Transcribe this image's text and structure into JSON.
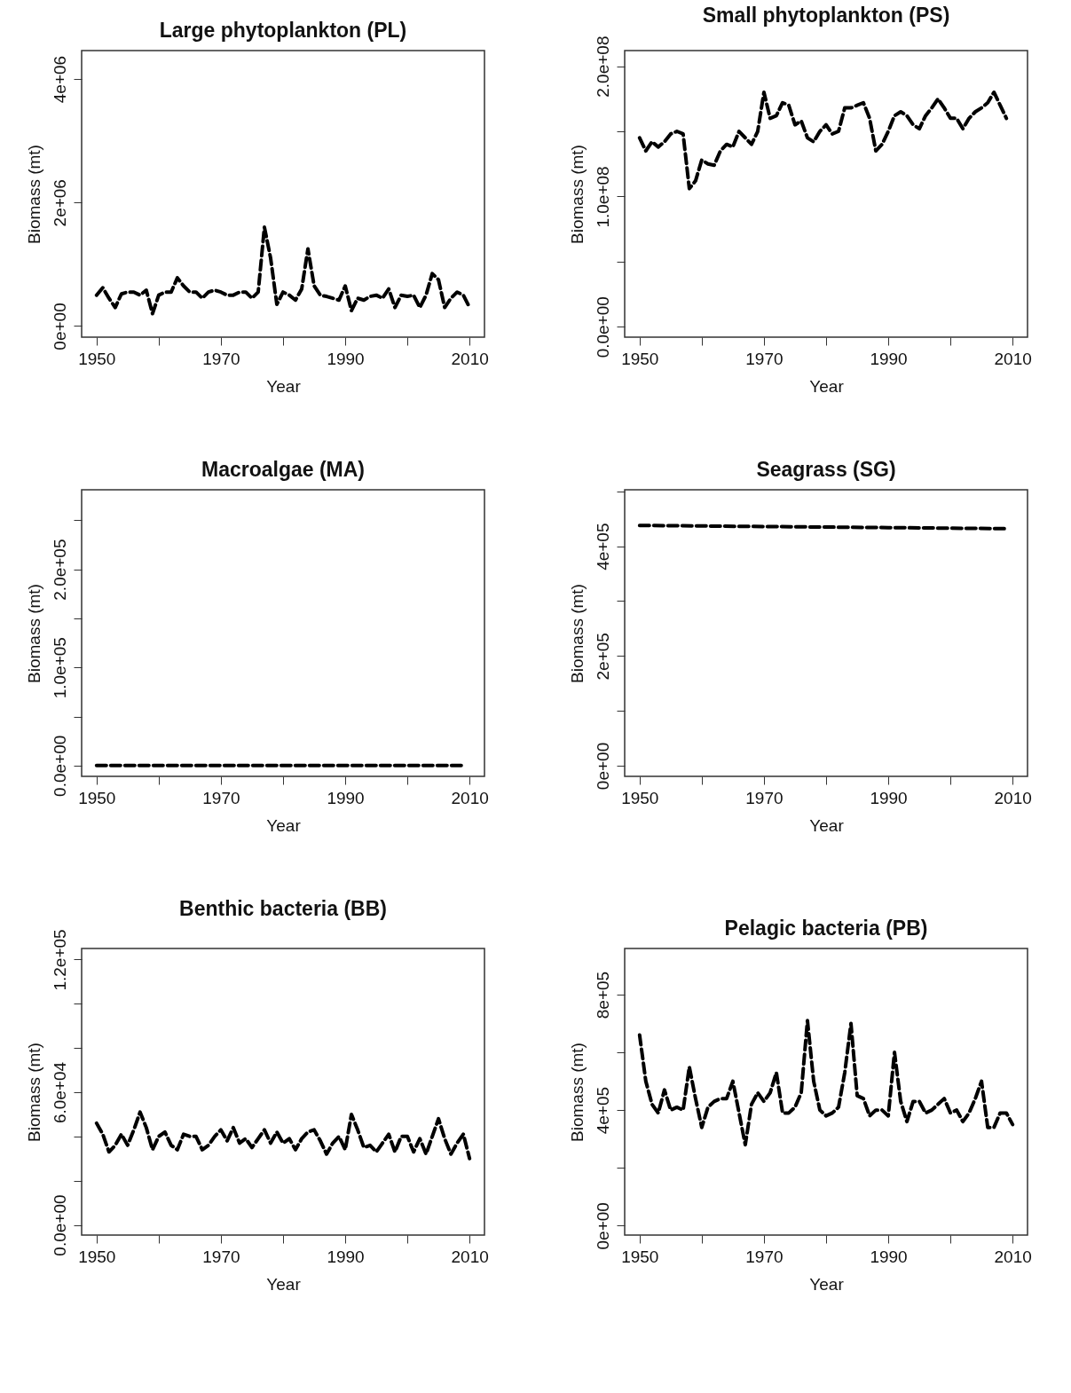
{
  "chart_data": [
    {
      "type": "line",
      "title": "Large phytoplankton (PL)",
      "xlabel": "Year",
      "ylabel": "Biomass (mt)",
      "line_style": "dashed",
      "x": [
        1950,
        1951,
        1952,
        1953,
        1954,
        1955,
        1956,
        1957,
        1958,
        1959,
        1960,
        1961,
        1962,
        1963,
        1964,
        1965,
        1966,
        1967,
        1968,
        1969,
        1970,
        1971,
        1972,
        1973,
        1974,
        1975,
        1976,
        1977,
        1978,
        1979,
        1980,
        1981,
        1982,
        1983,
        1984,
        1985,
        1986,
        1987,
        1988,
        1989,
        1990,
        1991,
        1992,
        1993,
        1994,
        1995,
        1996,
        1997,
        1998,
        1999,
        2000,
        2001,
        2002,
        2003,
        2004,
        2005,
        2006,
        2007,
        2008,
        2009,
        2010
      ],
      "series": [
        {
          "color": "#000000",
          "values": [
            500000,
            620000,
            450000,
            300000,
            520000,
            550000,
            550000,
            500000,
            580000,
            200000,
            500000,
            550000,
            550000,
            780000,
            650000,
            550000,
            550000,
            450000,
            550000,
            580000,
            550000,
            500000,
            500000,
            550000,
            550000,
            450000,
            550000,
            1600000,
            1100000,
            350000,
            550000,
            500000,
            420000,
            600000,
            1250000,
            650000,
            500000,
            480000,
            450000,
            420000,
            650000,
            250000,
            450000,
            420000,
            480000,
            500000,
            450000,
            600000,
            300000,
            500000,
            480000,
            500000,
            300000,
            500000,
            850000,
            750000,
            300000,
            450000,
            550000,
            500000,
            300000
          ]
        }
      ],
      "xlim": [
        1947.6,
        2012.4
      ],
      "xticks": [
        1950,
        {
          "value": 1960,
          "label": null
        },
        1970,
        {
          "value": 1980,
          "label": null
        },
        1990,
        {
          "value": 2000,
          "label": null
        },
        2010
      ],
      "ylim": [
        -180000,
        4460000
      ],
      "yticks": [
        {
          "value": 0,
          "label": "0e+00"
        },
        {
          "value": 2000000,
          "label": "2e+06"
        },
        {
          "value": 4000000,
          "label": "4e+06"
        }
      ]
    },
    {
      "type": "line",
      "title": "Small phytoplankton (PS)",
      "xlabel": "Year",
      "ylabel": "Biomass (mt)",
      "line_style": "dashed",
      "x": [
        1950,
        1951,
        1952,
        1953,
        1954,
        1955,
        1956,
        1957,
        1958,
        1959,
        1960,
        1961,
        1962,
        1963,
        1964,
        1965,
        1966,
        1967,
        1968,
        1969,
        1970,
        1971,
        1972,
        1973,
        1974,
        1975,
        1976,
        1977,
        1978,
        1979,
        1980,
        1981,
        1982,
        1983,
        1984,
        1985,
        1986,
        1987,
        1988,
        1989,
        1990,
        1991,
        1992,
        1993,
        1994,
        1995,
        1996,
        1997,
        1998,
        1999,
        2000,
        2001,
        2002,
        2003,
        2004,
        2005,
        2006,
        2007,
        2008,
        2009
      ],
      "series": [
        {
          "color": "#000000",
          "values": [
            145000000,
            135000000,
            142000000,
            138000000,
            142000000,
            148000000,
            150000000,
            148000000,
            106000000,
            112000000,
            128000000,
            125000000,
            124000000,
            135000000,
            140000000,
            138000000,
            150000000,
            145000000,
            140000000,
            150000000,
            180000000,
            160000000,
            162000000,
            172000000,
            170000000,
            155000000,
            158000000,
            145000000,
            142000000,
            150000000,
            155000000,
            148000000,
            150000000,
            168000000,
            168000000,
            170000000,
            172000000,
            160000000,
            135000000,
            140000000,
            150000000,
            162000000,
            165000000,
            162000000,
            155000000,
            152000000,
            162000000,
            168000000,
            175000000,
            168000000,
            160000000,
            160000000,
            152000000,
            160000000,
            165000000,
            168000000,
            172000000,
            180000000,
            170000000,
            160000000
          ]
        }
      ],
      "xlim": [
        1947.6,
        2012.4
      ],
      "xticks": [
        1950,
        {
          "value": 1960,
          "label": null
        },
        1970,
        {
          "value": 1980,
          "label": null
        },
        1990,
        {
          "value": 2000,
          "label": null
        },
        2010
      ],
      "ylim": [
        -8000000,
        212000000
      ],
      "yticks": [
        {
          "value": 0,
          "label": "0.0e+00"
        },
        {
          "value": 50000000,
          "label": null
        },
        {
          "value": 100000000,
          "label": "1.0e+08"
        },
        {
          "value": 150000000,
          "label": null
        },
        {
          "value": 200000000,
          "label": "2.0e+08"
        }
      ]
    },
    {
      "type": "line",
      "title": "Macroalgae (MA)",
      "xlabel": "Year",
      "ylabel": "Biomass (mt)",
      "line_style": "dashed",
      "x": [
        1950,
        1955,
        1960,
        1965,
        1970,
        1975,
        1980,
        1985,
        1990,
        1995,
        2000,
        2005,
        2009
      ],
      "series": [
        {
          "color": "#000000",
          "values": [
            0,
            0,
            0,
            0,
            0,
            0,
            0,
            0,
            0,
            0,
            0,
            0,
            0
          ]
        }
      ],
      "xlim": [
        1947.6,
        2012.4
      ],
      "xticks": [
        1950,
        {
          "value": 1960,
          "label": null
        },
        1970,
        {
          "value": 1980,
          "label": null
        },
        1990,
        {
          "value": 2000,
          "label": null
        },
        2010
      ],
      "ylim": [
        -11000,
        281000
      ],
      "yticks": [
        {
          "value": 0,
          "label": "0.0e+00"
        },
        {
          "value": 50000,
          "label": null
        },
        {
          "value": 100000,
          "label": "1.0e+05"
        },
        {
          "value": 150000,
          "label": null
        },
        {
          "value": 200000,
          "label": "2.0e+05"
        },
        {
          "value": 250000,
          "label": null
        }
      ]
    },
    {
      "type": "line",
      "title": "Seagrass (SG)",
      "xlabel": "Year",
      "ylabel": "Biomass (mt)",
      "line_style": "dashed",
      "x": [
        1950,
        1960,
        1970,
        1980,
        1990,
        2000,
        2009
      ],
      "series": [
        {
          "color": "#000000",
          "values": [
            438000,
            437000,
            436000,
            435000,
            434000,
            433000,
            432000
          ]
        }
      ],
      "xlim": [
        1947.6,
        2012.4
      ],
      "xticks": [
        1950,
        {
          "value": 1960,
          "label": null
        },
        1970,
        {
          "value": 1980,
          "label": null
        },
        1990,
        {
          "value": 2000,
          "label": null
        },
        2010
      ],
      "ylim": [
        -19500,
        503000
      ],
      "yticks": [
        {
          "value": 0,
          "label": "0e+00"
        },
        {
          "value": 100000,
          "label": null
        },
        {
          "value": 200000,
          "label": "2e+05"
        },
        {
          "value": 300000,
          "label": null
        },
        {
          "value": 400000,
          "label": "4e+05"
        },
        {
          "value": 500000,
          "label": null
        }
      ]
    },
    {
      "type": "line",
      "title": "Benthic bacteria (BB)",
      "xlabel": "Year",
      "ylabel": "Biomass (mt)",
      "line_style": "dashed",
      "x": [
        1950,
        1951,
        1952,
        1953,
        1954,
        1955,
        1956,
        1957,
        1958,
        1959,
        1960,
        1961,
        1962,
        1963,
        1964,
        1965,
        1966,
        1967,
        1968,
        1969,
        1970,
        1971,
        1972,
        1973,
        1974,
        1975,
        1976,
        1977,
        1978,
        1979,
        1980,
        1981,
        1982,
        1983,
        1984,
        1985,
        1986,
        1987,
        1988,
        1989,
        1990,
        1991,
        1992,
        1993,
        1994,
        1995,
        1996,
        1997,
        1998,
        1999,
        2000,
        2001,
        2002,
        2003,
        2004,
        2005,
        2006,
        2007,
        2008,
        2009,
        2010
      ],
      "series": [
        {
          "color": "#000000",
          "values": [
            46000,
            41000,
            33000,
            36000,
            41000,
            36000,
            43000,
            51000,
            44000,
            34000,
            40000,
            42000,
            36000,
            34000,
            41000,
            40000,
            40000,
            34000,
            36000,
            40000,
            43000,
            38000,
            44000,
            37000,
            39000,
            35000,
            39000,
            43000,
            37000,
            42000,
            37000,
            39000,
            34000,
            39000,
            42000,
            43000,
            38000,
            32000,
            37000,
            40000,
            34000,
            50000,
            43000,
            35000,
            36000,
            33000,
            37000,
            41000,
            33000,
            40000,
            40000,
            33000,
            39000,
            32000,
            40000,
            48000,
            39000,
            32000,
            37000,
            41000,
            30000
          ]
        }
      ],
      "xlim": [
        1947.6,
        2012.4
      ],
      "xticks": [
        1950,
        {
          "value": 1960,
          "label": null
        },
        1970,
        {
          "value": 1980,
          "label": null
        },
        1990,
        {
          "value": 2000,
          "label": null
        },
        2010
      ],
      "ylim": [
        -4600,
        125000
      ],
      "yticks": [
        {
          "value": 0,
          "label": "0.0e+00"
        },
        {
          "value": 20000,
          "label": null
        },
        {
          "value": 40000,
          "label": null
        },
        {
          "value": 60000,
          "label": "6.0e+04"
        },
        {
          "value": 80000,
          "label": null
        },
        {
          "value": 100000,
          "label": null
        },
        {
          "value": 120000,
          "label": "1.2e+05"
        }
      ]
    },
    {
      "type": "line",
      "title": "Pelagic bacteria (PB)",
      "xlabel": "Year",
      "ylabel": "Biomass (mt)",
      "line_style": "dashed",
      "x": [
        1950,
        1951,
        1952,
        1953,
        1954,
        1955,
        1956,
        1957,
        1958,
        1959,
        1960,
        1961,
        1962,
        1963,
        1964,
        1965,
        1966,
        1967,
        1968,
        1969,
        1970,
        1971,
        1972,
        1973,
        1974,
        1975,
        1976,
        1977,
        1978,
        1979,
        1980,
        1981,
        1982,
        1983,
        1984,
        1985,
        1986,
        1987,
        1988,
        1989,
        1990,
        1991,
        1992,
        1993,
        1994,
        1995,
        1996,
        1997,
        1998,
        1999,
        2000,
        2001,
        2002,
        2003,
        2004,
        2005,
        2006,
        2007,
        2008,
        2009,
        2010
      ],
      "series": [
        {
          "color": "#000000",
          "values": [
            660000,
            500000,
            420000,
            390000,
            470000,
            400000,
            410000,
            400000,
            550000,
            440000,
            340000,
            410000,
            430000,
            440000,
            440000,
            500000,
            390000,
            280000,
            420000,
            460000,
            430000,
            460000,
            530000,
            390000,
            390000,
            410000,
            460000,
            710000,
            500000,
            400000,
            380000,
            390000,
            410000,
            530000,
            700000,
            450000,
            440000,
            380000,
            400000,
            400000,
            380000,
            600000,
            430000,
            360000,
            430000,
            430000,
            390000,
            400000,
            420000,
            440000,
            390000,
            400000,
            360000,
            390000,
            440000,
            500000,
            340000,
            340000,
            390000,
            390000,
            350000
          ]
        }
      ],
      "xlim": [
        1947.6,
        2012.4
      ],
      "xticks": [
        1950,
        {
          "value": 1960,
          "label": null
        },
        1970,
        {
          "value": 1980,
          "label": null
        },
        1990,
        {
          "value": 2000,
          "label": null
        },
        2010
      ],
      "ylim": [
        -33000,
        960000
      ],
      "yticks": [
        {
          "value": 0,
          "label": "0e+00"
        },
        {
          "value": 200000,
          "label": null
        },
        {
          "value": 400000,
          "label": "4e+05"
        },
        {
          "value": 600000,
          "label": null
        },
        {
          "value": 800000,
          "label": "8e+05"
        }
      ]
    }
  ]
}
